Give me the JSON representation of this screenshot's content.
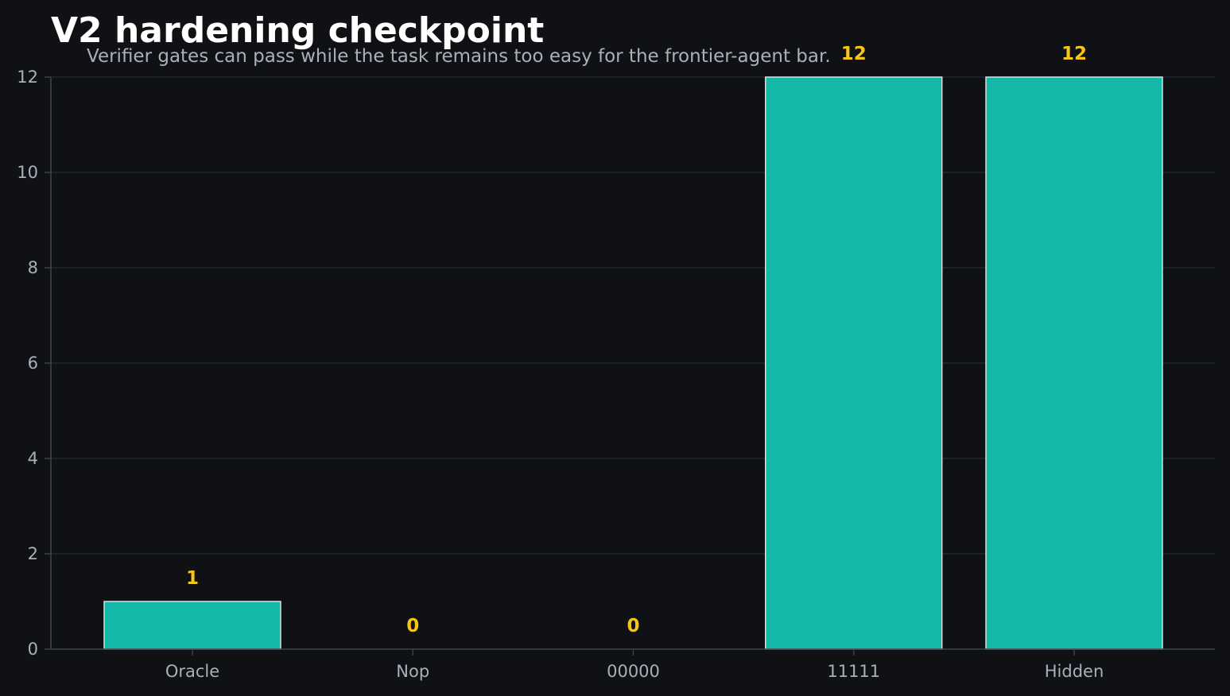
{
  "chart_data": {
    "type": "bar",
    "title": "V2 hardening checkpoint",
    "subtitle": "Verifier gates can pass while the task remains too easy for the frontier-agent bar.",
    "categories": [
      "Oracle",
      "Nop",
      "00000",
      "11111",
      "Hidden"
    ],
    "values": [
      1,
      0,
      0,
      12,
      12
    ],
    "data_labels": [
      "1",
      "0",
      "0",
      "12",
      "12"
    ],
    "xlabel": "",
    "ylabel": "",
    "ylim": [
      0,
      12
    ],
    "yticks": [
      0,
      2,
      4,
      6,
      8,
      10,
      12
    ],
    "ytick_labels": [
      "0",
      "2",
      "4",
      "6",
      "8",
      "10",
      "12"
    ],
    "grid": "horizontal",
    "legend": "none"
  },
  "colors": {
    "background": "#101115",
    "bar_fill": "#13b8a8",
    "bar_edge": "#e6e6e6",
    "data_label": "#f5c518",
    "grid": "#1f2732",
    "axis": "#3a4350",
    "tick_text": "#a9b0bb",
    "title": "#ffffff",
    "subtitle": "#a9b0bb"
  }
}
